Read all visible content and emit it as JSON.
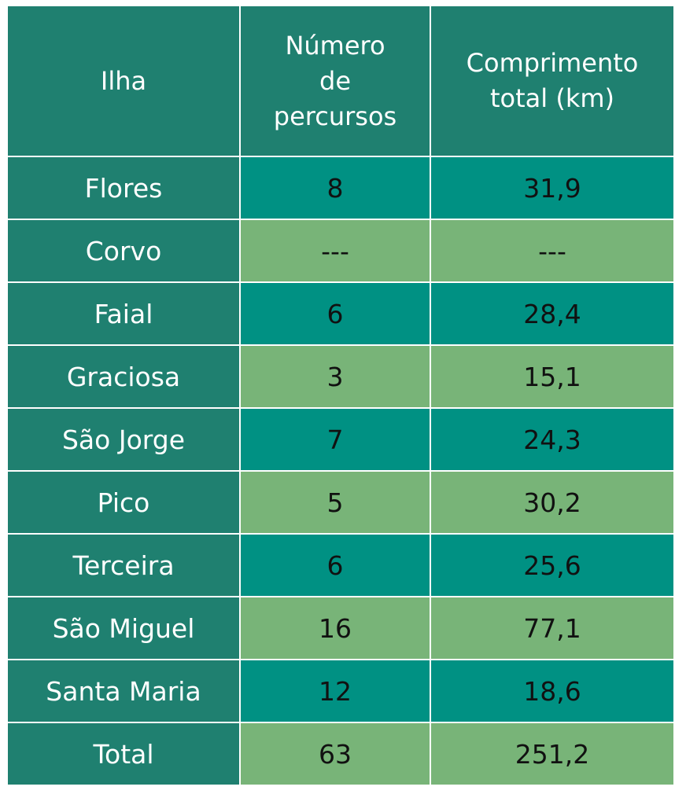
{
  "headers": {
    "ilha": "Ilha",
    "numero_lines": [
      "Número",
      "de",
      "percursos"
    ],
    "comprimento_lines": [
      "Comprimento",
      "total (km)"
    ]
  },
  "rows": [
    {
      "ilha": "Flores",
      "percursos": "8",
      "comprimento": "31,9"
    },
    {
      "ilha": "Corvo",
      "percursos": "---",
      "comprimento": "---"
    },
    {
      "ilha": "Faial",
      "percursos": "6",
      "comprimento": "28,4"
    },
    {
      "ilha": "Graciosa",
      "percursos": "3",
      "comprimento": "15,1"
    },
    {
      "ilha": "São Jorge",
      "percursos": "7",
      "comprimento": "24,3"
    },
    {
      "ilha": "Pico",
      "percursos": "5",
      "comprimento": "30,2"
    },
    {
      "ilha": "Terceira",
      "percursos": "6",
      "comprimento": "25,6"
    },
    {
      "ilha": "São Miguel",
      "percursos": "16",
      "comprimento": "77,1"
    },
    {
      "ilha": "Santa Maria",
      "percursos": "12",
      "comprimento": "18,6"
    },
    {
      "ilha": "Total",
      "percursos": "63",
      "comprimento": "251,2"
    }
  ],
  "colors": {
    "header_bg": "#1f8070",
    "name_col_bg": "#1f8070",
    "row_odd_bg": "#009183",
    "row_even_bg": "#78b478"
  }
}
